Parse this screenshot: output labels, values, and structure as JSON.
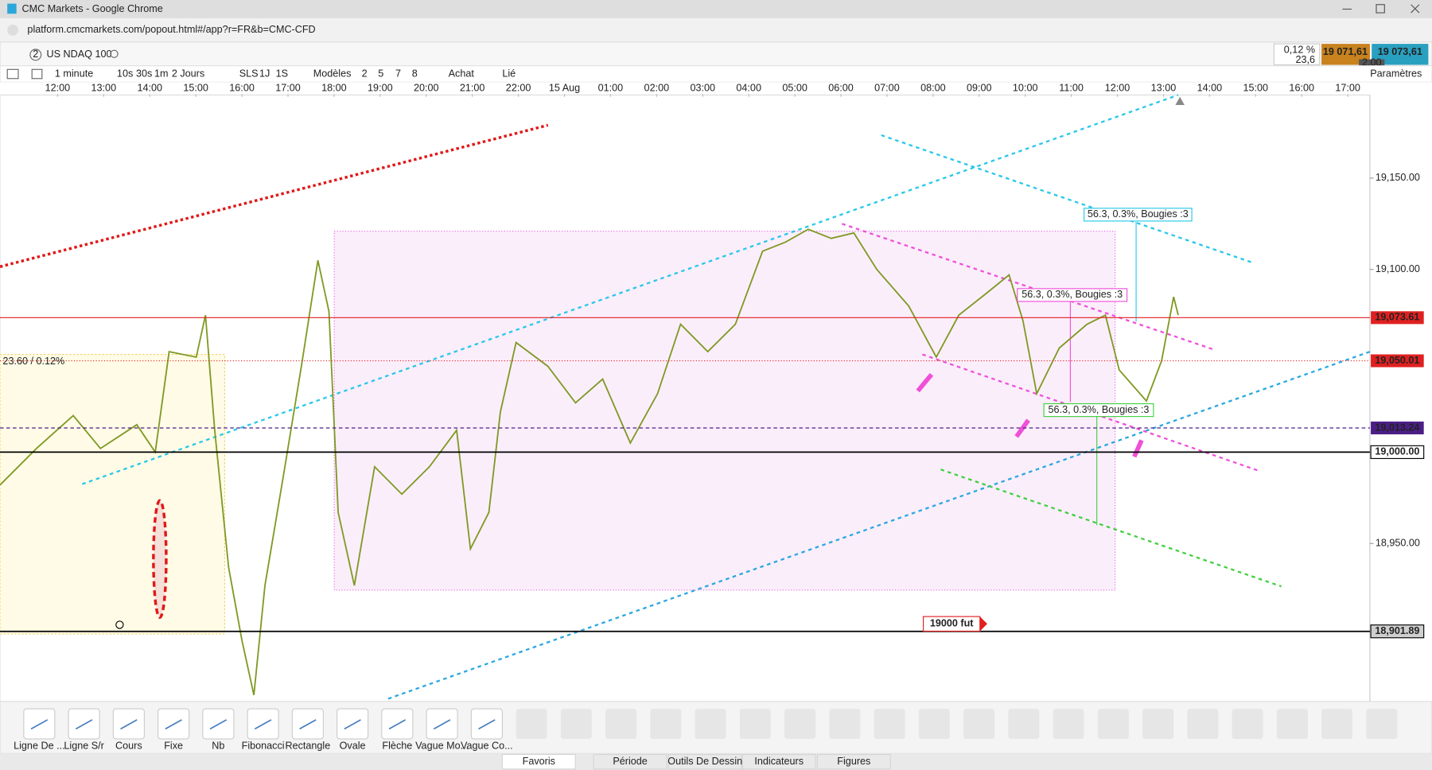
{
  "window": {
    "title": "CMC Markets - Google Chrome",
    "url": "platform.cmcmarkets.com/popout.html#/app?r=FR&b=CMC-CFD"
  },
  "instrument": {
    "badge": "2",
    "name": "US NDAQ 100",
    "change_pct": "0,12 %",
    "change_pts": "23,6",
    "sell": "19 071,61",
    "buy": "19 073,61",
    "spread": "2.00"
  },
  "toolbar": {
    "items": [
      "1 minute",
      "10s",
      "30s",
      "1m",
      "2 Jours",
      "SLS",
      "1J",
      "1S",
      "Modèles",
      "2",
      "5",
      "7",
      "8",
      "Achat",
      "Lié"
    ],
    "settings": "Paramètres"
  },
  "chart_data": {
    "type": "line",
    "color": "#7f9a24",
    "x": [
      -1.25,
      -0.46,
      0.34,
      0.93,
      1.72,
      2.12,
      2.42,
      3.01,
      3.21,
      3.41,
      3.71,
      4.0,
      4.26,
      4.5,
      4.9,
      5.29,
      5.65,
      5.89,
      6.09,
      6.44,
      6.88,
      7.47,
      8.07,
      8.66,
      8.96,
      9.36,
      9.61,
      9.95,
      10.64,
      11.24,
      11.83,
      12.43,
      13.02,
      13.52,
      14.11,
      14.71,
      15.3,
      15.8,
      16.29,
      16.79,
      17.28,
      17.78,
      18.47,
      19.07,
      19.56,
      20.16,
      20.65,
      20.95,
      21.25,
      21.74,
      22.34,
      22.74,
      23.04,
      23.63,
      23.96,
      24.22,
      24.32
    ],
    "values": [
      18982,
      19002,
      19020,
      19002,
      19015,
      19000,
      19055,
      19052,
      19075,
      19012,
      18937,
      18897,
      18867,
      18927,
      18987,
      19047,
      19105,
      19077,
      18967,
      18927,
      18992,
      18977,
      18992,
      19012,
      18947,
      18967,
      19022,
      19060,
      19047,
      19027,
      19040,
      19005,
      19032,
      19070,
      19055,
      19070,
      19110,
      19115,
      19122,
      19117,
      19120,
      19100,
      19080,
      19052,
      19075,
      19087,
      19097,
      19072,
      19032,
      19057,
      19070,
      19075,
      19045,
      19028,
      19050,
      19085,
      19075
    ],
    "xlim": [
      -1.25,
      28.48
    ],
    "xticks": [
      {
        "value": 0,
        "label": "12:00"
      },
      {
        "value": 1,
        "label": "13:00"
      },
      {
        "value": 2,
        "label": "14:00"
      },
      {
        "value": 3,
        "label": "15:00"
      },
      {
        "value": 4,
        "label": "16:00"
      },
      {
        "value": 5,
        "label": "17:00"
      },
      {
        "value": 6,
        "label": "18:00"
      },
      {
        "value": 7,
        "label": "19:00"
      },
      {
        "value": 8,
        "label": "20:00"
      },
      {
        "value": 9,
        "label": "21:00"
      },
      {
        "value": 10,
        "label": "22:00"
      },
      {
        "value": 11,
        "label": "15 Aug"
      },
      {
        "value": 12,
        "label": "01:00"
      },
      {
        "value": 13,
        "label": "02:00"
      },
      {
        "value": 14,
        "label": "03:00"
      },
      {
        "value": 15,
        "label": "04:00"
      },
      {
        "value": 16,
        "label": "05:00"
      },
      {
        "value": 17,
        "label": "06:00"
      },
      {
        "value": 18,
        "label": "07:00"
      },
      {
        "value": 19,
        "label": "08:00"
      },
      {
        "value": 20,
        "label": "09:00"
      },
      {
        "value": 21,
        "label": "10:00"
      },
      {
        "value": 22,
        "label": "11:00"
      },
      {
        "value": 23,
        "label": "12:00"
      },
      {
        "value": 24,
        "label": "13:00"
      },
      {
        "value": 25,
        "label": "14:00"
      },
      {
        "value": 26,
        "label": "15:00"
      },
      {
        "value": 27,
        "label": "16:00"
      },
      {
        "value": 28,
        "label": "17:00"
      }
    ],
    "ylim": [
      18863.5,
      19195.5
    ],
    "yticks": [
      {
        "value": 19150,
        "label": "19,150.00"
      },
      {
        "value": 19100,
        "label": "19,100.00"
      },
      {
        "value": 18950,
        "label": "18,950.00"
      }
    ],
    "price_tags": [
      {
        "value": 19073.61,
        "label": "19,073.61",
        "color": "#e02020",
        "style": "solid"
      },
      {
        "value": 19050.01,
        "label": "19,050.01",
        "color": "#e02020",
        "style": "dotted"
      },
      {
        "value": 19013.24,
        "label": "19,013.24",
        "color": "#4b1e86",
        "style": "dashed"
      },
      {
        "value": 19000,
        "label": "19,000.00",
        "color": "#000000",
        "style": "solid"
      },
      {
        "value": 18901.89,
        "label": "18,901.89",
        "color": "#000000",
        "style": "solid"
      }
    ],
    "annotations": {
      "range": "23.60 / 0.12%",
      "future": "19000 fut",
      "measure_cyan": "56.3, 0.3%, Bougies :3",
      "measure_pink": "56.3, 0.3%, Bougies :3",
      "measure_green": "56.3, 0.3%, Bougies :3"
    }
  },
  "drawing_tools": [
    "Ligne De ...",
    "Ligne S/r",
    "Cours",
    "Fixe",
    "Nb",
    "Fibonacci",
    "Rectangle",
    "Ovale",
    "Flèche",
    "Vague Mo...",
    "Vague Co..."
  ],
  "tabs": [
    "Favoris",
    "Période",
    "Outils De Dessin",
    "Indicateurs",
    "Figures"
  ]
}
